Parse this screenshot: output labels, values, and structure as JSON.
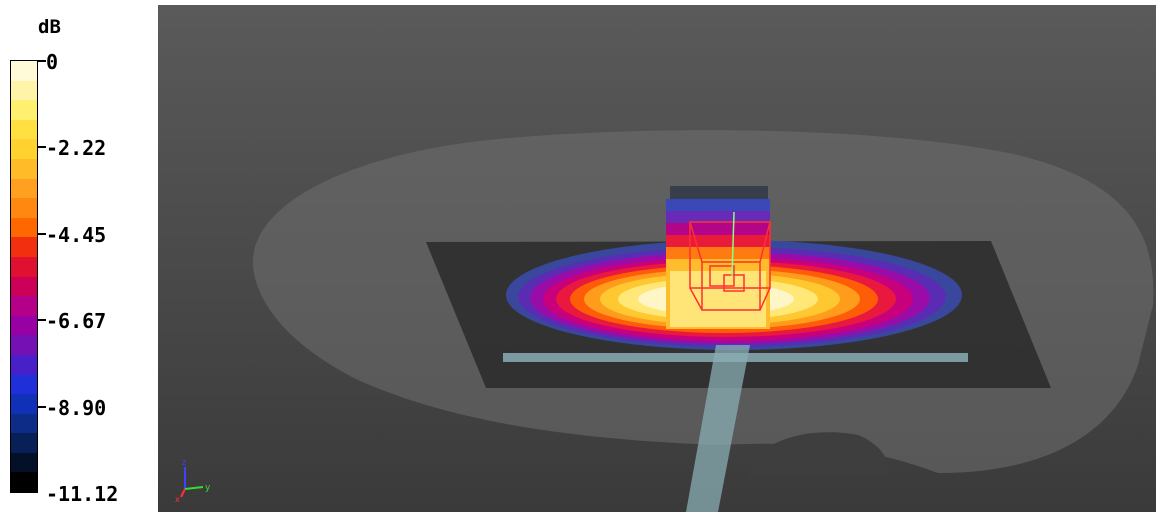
{
  "legend": {
    "unit": "dB",
    "ticks": [
      "0",
      "-2.22",
      "-4.45",
      "-6.67",
      "-8.90",
      "-11.12"
    ],
    "colors": [
      "#fffad8",
      "#fff4a8",
      "#fff070",
      "#ffe040",
      "#ffd230",
      "#ffbc28",
      "#ffa020",
      "#ff8810",
      "#ff6800",
      "#f23010",
      "#e01030",
      "#cc0058",
      "#b40088",
      "#9800a4",
      "#7410b4",
      "#4820c8",
      "#2030d8",
      "#1030b8",
      "#0c2c88",
      "#082058",
      "#041028",
      "#000000"
    ]
  },
  "viewport": {
    "background_top": "#5a5a5a",
    "background_bottom": "#3a3a3a",
    "ground_color": "#6a6a6a",
    "substrate_color": "#2a2a2a",
    "feed_line_color": "#8aaeb4",
    "box_color": "#ff3030"
  },
  "axis_triad": {
    "y_label": "y",
    "z_label": "z",
    "x_label": "x"
  }
}
